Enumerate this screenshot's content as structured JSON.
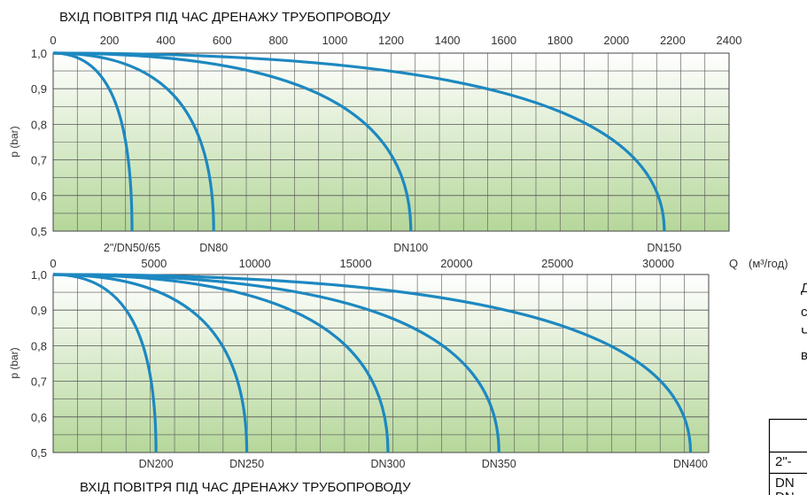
{
  "page": {
    "title_top": "ВХІД ПОВІТРЯ ПІД ЧАС ДРЕНАЖУ ТРУБОПРОВОДУ",
    "title_bottom": "ВХІД ПОВІТРЯ ПІД ЧАС ДРЕНАЖУ ТРУБОПРОВОДУ",
    "flow_axis_symbol": "Q",
    "flow_unit": "(м³/год)",
    "side_text": [
      "Д",
      "с",
      "Ч",
      "в"
    ],
    "table_rows": [
      "",
      "2\"-",
      "DN",
      "DN"
    ]
  },
  "chart_data": [
    {
      "type": "line",
      "title": "ВХІД ПОВІТРЯ ПІД ЧАС ДРЕНАЖУ ТРУБОПРОВОДУ",
      "xlabel": "Q (м³/год)",
      "ylabel": "p (bar)",
      "xlim": [
        0,
        2400
      ],
      "ylim": [
        0.5,
        1.0
      ],
      "x_ticks": [
        "0",
        "200",
        "400",
        "600",
        "800",
        "1000",
        "1200",
        "1400",
        "1600",
        "1800",
        "2000",
        "2200",
        "2400"
      ],
      "y_ticks": [
        "0,5",
        "0,6",
        "0,7",
        "0,8",
        "0,9",
        "1,0"
      ],
      "grid": true,
      "series": [
        {
          "name": "2\"/DN50/65",
          "q_max": 280
        },
        {
          "name": "DN80",
          "q_max": 570
        },
        {
          "name": "DN100",
          "q_max": 1270
        },
        {
          "name": "DN150",
          "q_max": 2170
        }
      ]
    },
    {
      "type": "line",
      "title": "ВХІД ПОВІТРЯ ПІД ЧАС ДРЕНАЖУ ТРУБОПРОВОДУ",
      "xlabel": "Q (м³/год)",
      "ylabel": "p (bar)",
      "xlim": [
        0,
        32500
      ],
      "ylim": [
        0.5,
        1.0
      ],
      "x_ticks": [
        "0",
        "5000",
        "10000",
        "15000",
        "20000",
        "25000",
        "30000"
      ],
      "y_ticks": [
        "0,5",
        "0,6",
        "0,7",
        "0,8",
        "0,9",
        "1,0"
      ],
      "grid": true,
      "series": [
        {
          "name": "DN200",
          "q_max": 5100
        },
        {
          "name": "DN250",
          "q_max": 9600
        },
        {
          "name": "DN300",
          "q_max": 16600
        },
        {
          "name": "DN350",
          "q_max": 22100
        },
        {
          "name": "DN400",
          "q_max": 31600
        }
      ]
    }
  ]
}
